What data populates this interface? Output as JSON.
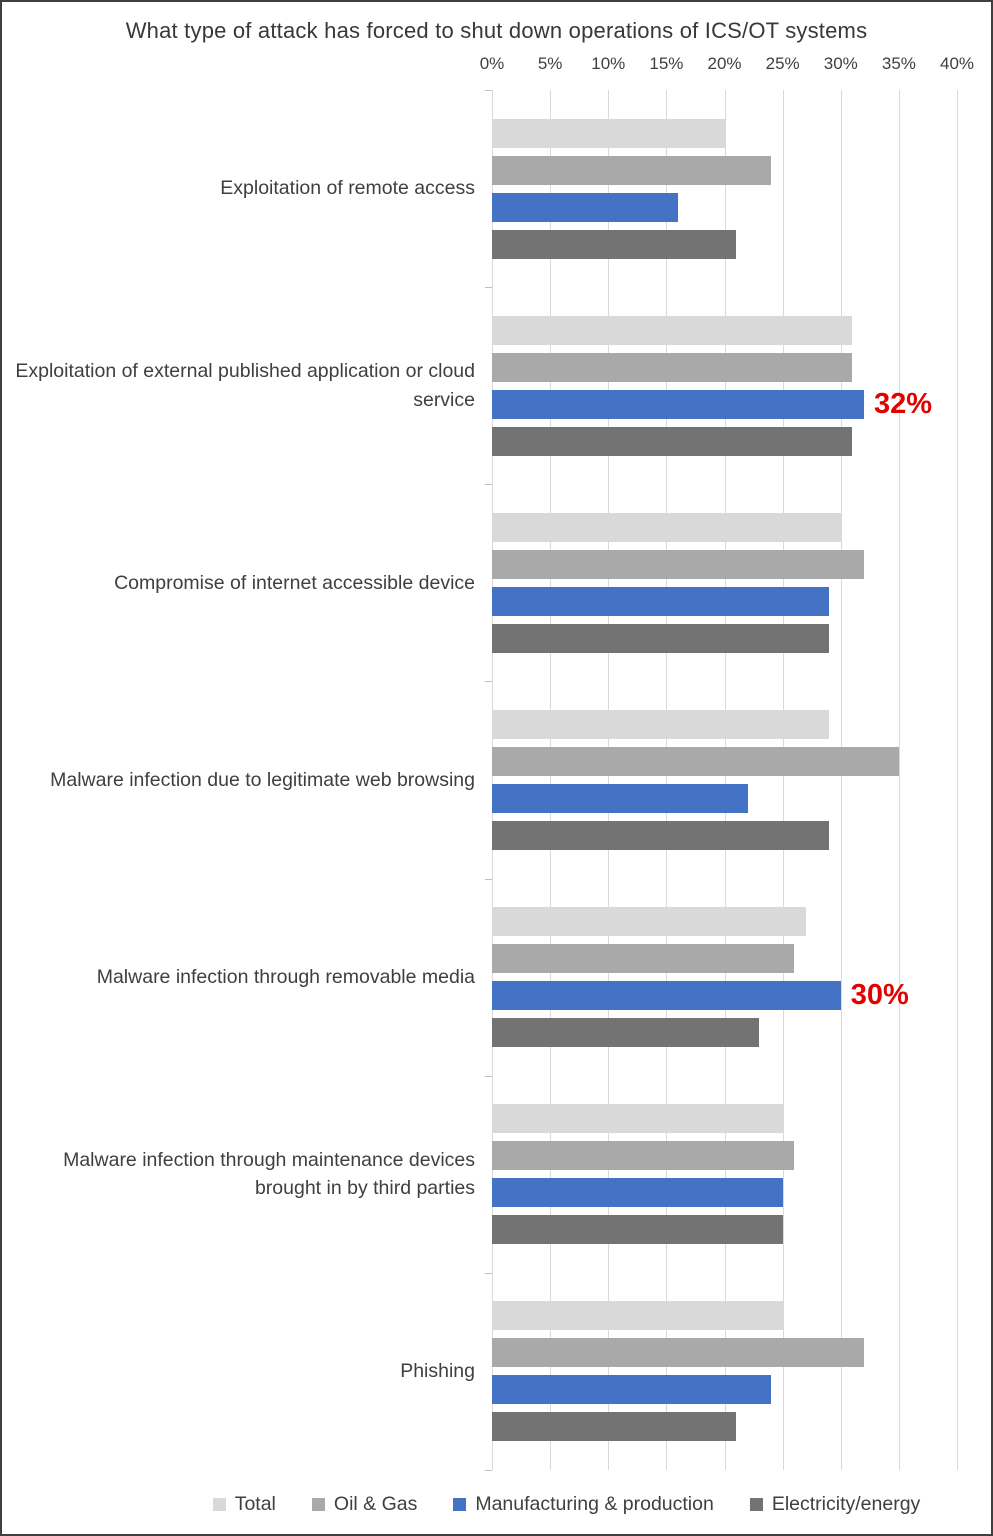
{
  "chart_data": {
    "type": "bar",
    "orientation": "horizontal",
    "title": "What type of attack has forced to shut down operations of ICS/OT systems",
    "x_axis": {
      "min": 0,
      "max": 40,
      "step": 5,
      "unit": "%",
      "tick_labels": [
        "0%",
        "5%",
        "10%",
        "15%",
        "20%",
        "25%",
        "30%",
        "35%",
        "40%"
      ]
    },
    "grid": true,
    "legend_position": "bottom",
    "categories": [
      "Exploitation of remote access",
      "Exploitation of external published application or cloud service",
      "Compromise of internet accessible device",
      "Malware infection due to legitimate web browsing",
      "Malware infection through removable media",
      "Malware infection through maintenance devices brought in by third parties",
      "Phishing"
    ],
    "series": [
      {
        "name": "Total",
        "color": "#d9d9d9",
        "values": [
          20,
          31,
          30,
          29,
          27,
          25,
          25
        ]
      },
      {
        "name": "Oil & Gas",
        "color": "#a9a9a9",
        "values": [
          24,
          31,
          32,
          35,
          26,
          26,
          32
        ]
      },
      {
        "name": "Manufacturing & production",
        "color": "#4472c4",
        "values": [
          16,
          32,
          29,
          22,
          30,
          25,
          24
        ],
        "data_labels": {
          "1": "32%",
          "4": "30%"
        }
      },
      {
        "name": "Electricity/energy",
        "color": "#737373",
        "values": [
          21,
          31,
          29,
          29,
          23,
          25,
          21
        ]
      }
    ],
    "data_label_color": "#e30000",
    "data_label_style": "bold"
  }
}
